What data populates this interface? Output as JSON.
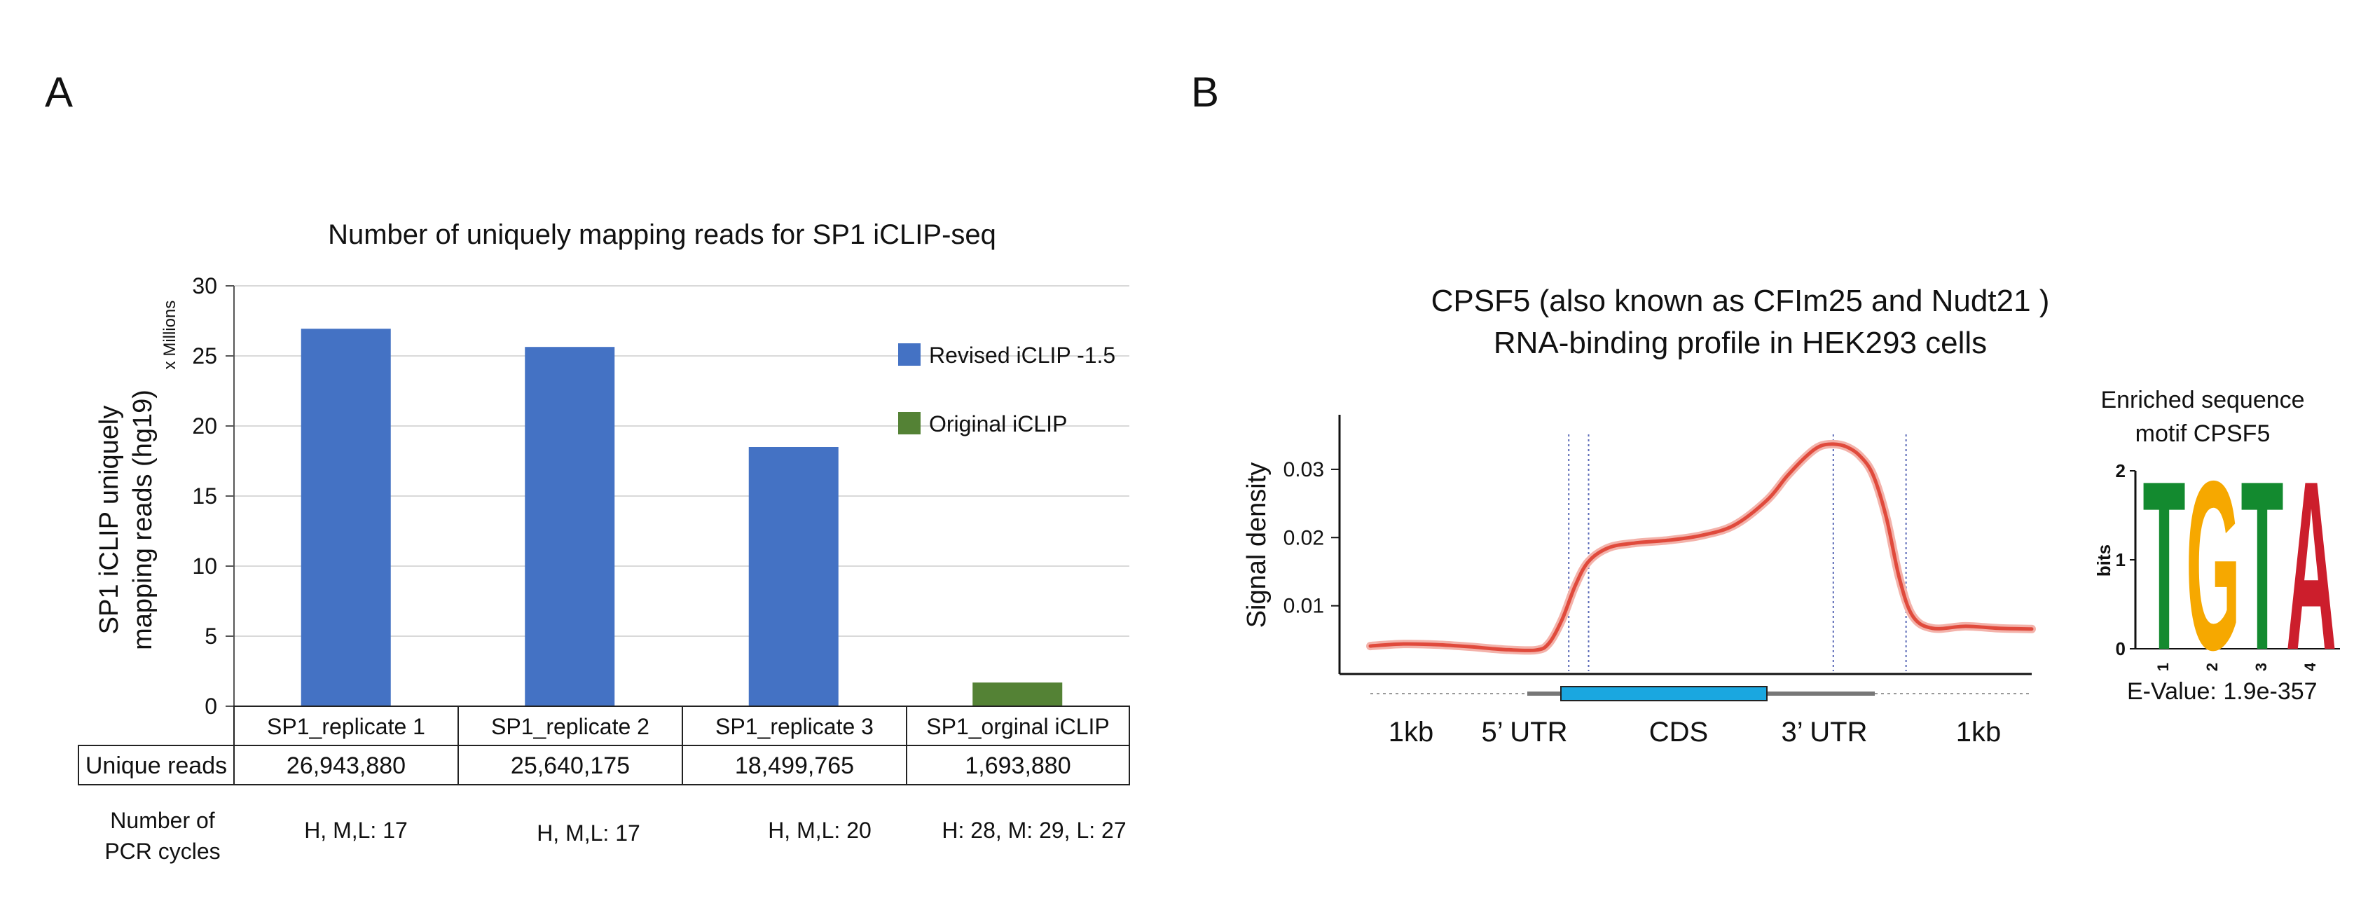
{
  "panel_labels": [
    "A",
    "B"
  ],
  "panel_a": {
    "y_axis_label_line1": "SP1 iCLIP uniquely",
    "y_axis_label_line2": "mapping reads (hg19)",
    "y_axis_unit": "x Millions",
    "table": {
      "row_label": "Unique reads",
      "values": [
        "26,943,880",
        "25,640,175",
        "18,499,765",
        "1,693,880"
      ],
      "pcr_label_line1": "Number of",
      "pcr_label_line2": "PCR cycles",
      "pcr_values": [
        "H, M,L: 17",
        "H, M,L: 17",
        "H, M,L: 20",
        "H: 28, M: 29, L: 27"
      ]
    }
  },
  "panel_b": {
    "title_line1": "CPSF5 (also known as CFIm25 and Nudt21 )",
    "title_line2": "RNA-binding profile in HEK293 cells",
    "gene_regions": [
      "1kb",
      "5’ UTR",
      "CDS",
      "3’ UTR",
      "1kb"
    ],
    "motif": {
      "title_line1": "Enriched sequence",
      "title_line2": "motif CPSF5",
      "y_label": "bits",
      "y_ticks": [
        "0",
        "1",
        "2"
      ],
      "positions": [
        "1",
        "2",
        "3",
        "4"
      ],
      "letters": [
        {
          "letter": "T",
          "color": "#138a2f",
          "height_bits": 1.95
        },
        {
          "letter": "G",
          "color": "#f6a800",
          "height_bits": 1.95
        },
        {
          "letter": "T",
          "color": "#138a2f",
          "height_bits": 1.95
        },
        {
          "letter": "A",
          "color": "#cc1e2c",
          "height_bits": 1.95
        }
      ],
      "evalue": "E-Value:  1.9e-357"
    }
  },
  "chart_data": [
    {
      "type": "bar",
      "title": "Number of uniquely mapping reads for SP1 iCLIP-seq",
      "xlabel": "",
      "ylabel": "SP1 iCLIP uniquely mapping reads (hg19)",
      "y_unit": "x Millions",
      "categories": [
        "SP1_replicate 1",
        "SP1_replicate 2",
        "SP1_replicate 3",
        "SP1_orginal iCLIP"
      ],
      "series": [
        {
          "name": "Revised iCLIP -1.5",
          "color": "#4472c4",
          "values": [
            26.94,
            25.64,
            18.5,
            null
          ]
        },
        {
          "name": "Original iCLIP",
          "color": "#548235",
          "values": [
            null,
            null,
            null,
            1.69
          ]
        }
      ],
      "ylim": [
        0,
        30
      ],
      "yticks": [
        0,
        5,
        10,
        15,
        20,
        25,
        30
      ],
      "grid": true,
      "legend_position": "right"
    },
    {
      "type": "line",
      "title": "CPSF5 (also known as CFIm25 and Nudt21 ) RNA-binding profile in HEK293 cells",
      "ylabel": "Signal density",
      "yticks": [
        0.01,
        0.02,
        0.03
      ],
      "ylim": [
        0.0,
        0.038
      ],
      "x_segments": [
        "1kb",
        "5’ UTR",
        "CDS",
        "3’ UTR",
        "1kb"
      ],
      "x_boundaries": [
        0.3,
        0.33,
        0.7,
        0.81,
        1.0
      ],
      "x": [
        0.0,
        0.05,
        0.1,
        0.15,
        0.2,
        0.25,
        0.27,
        0.29,
        0.31,
        0.33,
        0.36,
        0.4,
        0.45,
        0.5,
        0.55,
        0.6,
        0.63,
        0.66,
        0.68,
        0.7,
        0.72,
        0.74,
        0.76,
        0.78,
        0.8,
        0.82,
        0.85,
        0.9,
        0.95,
        1.0
      ],
      "series": [
        {
          "name": "",
          "color": "#e04a3c",
          "values": [
            0.0041,
            0.0044,
            0.0043,
            0.004,
            0.0036,
            0.0035,
            0.0045,
            0.008,
            0.013,
            0.0165,
            0.0185,
            0.0192,
            0.0196,
            0.0203,
            0.0218,
            0.0255,
            0.029,
            0.032,
            0.0334,
            0.0337,
            0.0333,
            0.032,
            0.0292,
            0.023,
            0.014,
            0.0085,
            0.0067,
            0.007,
            0.0067,
            0.0066
          ]
        }
      ],
      "grid": false
    }
  ]
}
